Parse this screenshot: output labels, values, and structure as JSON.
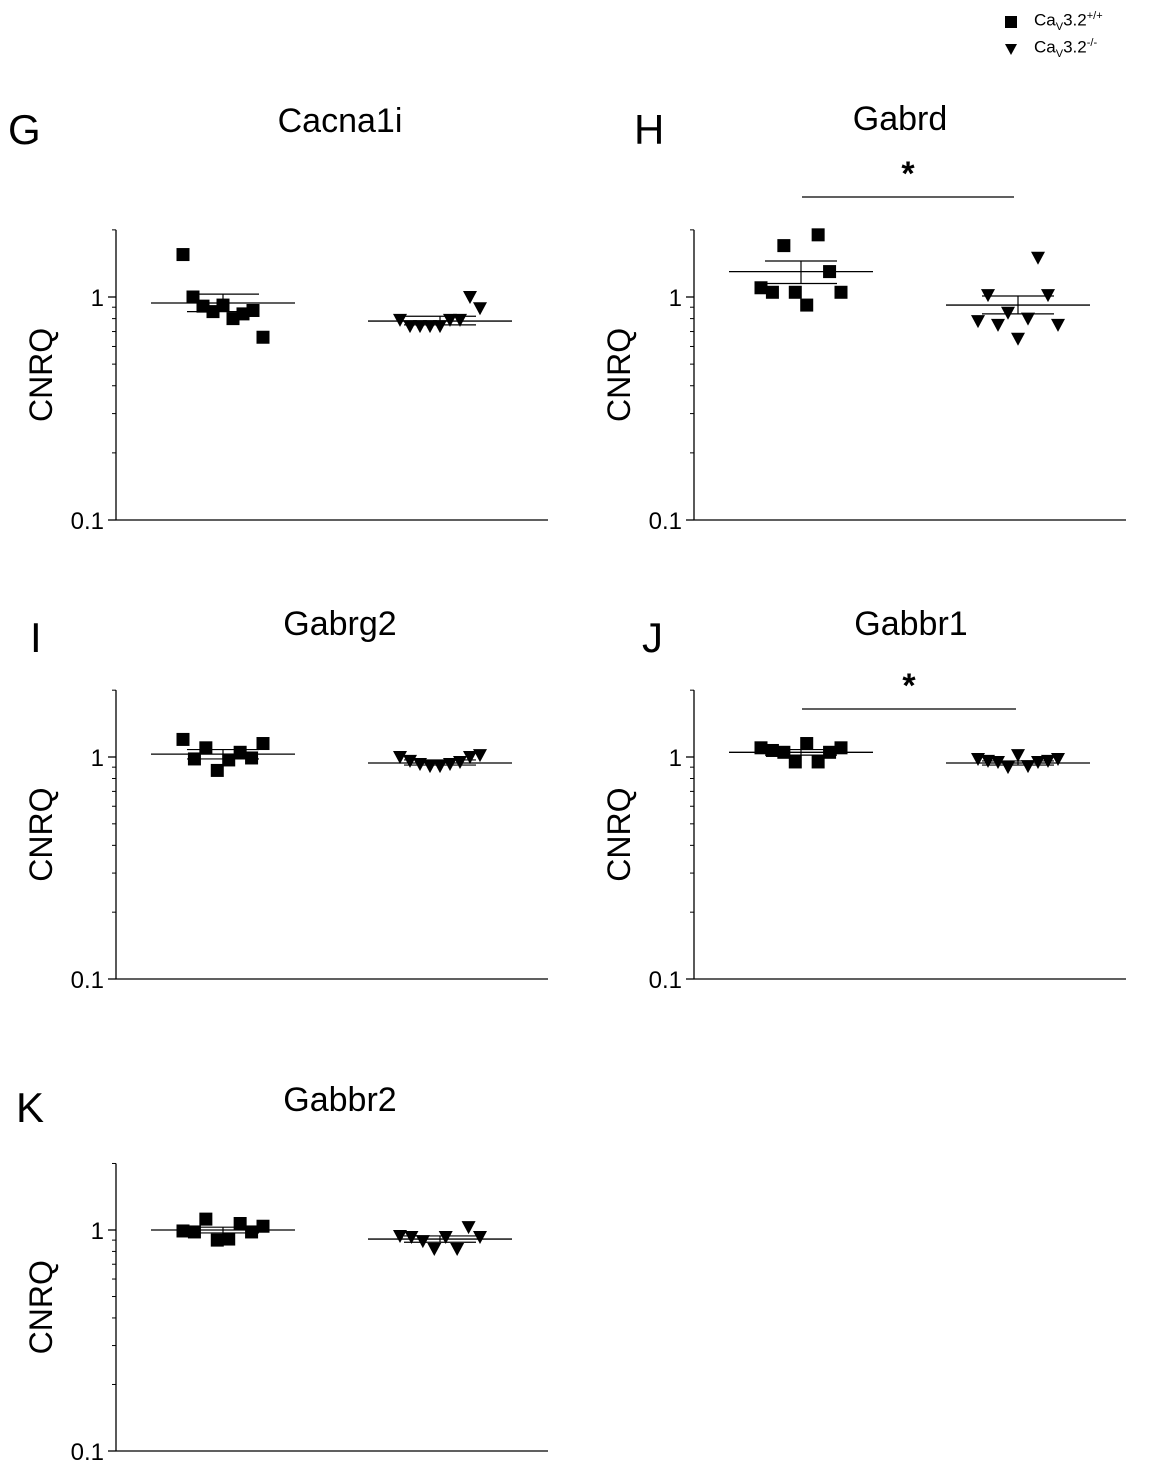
{
  "legend": {
    "entries": [
      {
        "marker": "square",
        "prefix": "Ca",
        "sub": "V",
        "body": "3.2",
        "sup": "+/+"
      },
      {
        "marker": "triangle-down",
        "prefix": "Ca",
        "sub": "V",
        "body": "3.2",
        "sup": "-/-"
      }
    ]
  },
  "chart_data": [
    {
      "type": "scatter",
      "panel": "G",
      "title": "Cacna1i",
      "ylabel": "CNRQ",
      "yscale": "log",
      "ylim": [
        0.1,
        2
      ],
      "yticks": [
        {
          "value": 0.1,
          "label": "0.1"
        },
        {
          "value": 1,
          "label": "1"
        }
      ],
      "groups": [
        {
          "marker": "square",
          "values": [
            1.55,
            1.0,
            0.91,
            0.86,
            0.92,
            0.8,
            0.84,
            0.87,
            0.66
          ],
          "mean": 0.94,
          "sem_low": 0.86,
          "sem_high": 1.03
        },
        {
          "marker": "triangle-down",
          "values": [
            0.79,
            0.74,
            0.74,
            0.74,
            0.74,
            0.79,
            0.79,
            1.0,
            0.89
          ],
          "mean": 0.78,
          "sem_low": 0.75,
          "sem_high": 0.82
        }
      ],
      "significance": null
    },
    {
      "type": "scatter",
      "panel": "H",
      "title": "Gabrd",
      "ylabel": "CNRQ",
      "yscale": "log",
      "ylim": [
        0.1,
        2
      ],
      "yticks": [
        {
          "value": 0.1,
          "label": "0.1"
        },
        {
          "value": 1,
          "label": "1"
        }
      ],
      "groups": [
        {
          "marker": "square",
          "values": [
            1.1,
            1.05,
            1.7,
            1.05,
            0.92,
            1.9,
            1.3,
            1.05
          ],
          "mean": 1.3,
          "sem_low": 1.15,
          "sem_high": 1.45
        },
        {
          "marker": "triangle-down",
          "values": [
            0.78,
            1.02,
            0.75,
            0.85,
            0.65,
            0.8,
            1.5,
            1.02,
            0.75
          ],
          "mean": 0.92,
          "sem_low": 0.84,
          "sem_high": 1.01
        }
      ],
      "significance": "*"
    },
    {
      "type": "scatter",
      "panel": "I",
      "title": "Gabrg2",
      "ylabel": "CNRQ",
      "yscale": "log",
      "ylim": [
        0.1,
        2
      ],
      "yticks": [
        {
          "value": 0.1,
          "label": "0.1"
        },
        {
          "value": 1,
          "label": "1"
        }
      ],
      "groups": [
        {
          "marker": "square",
          "values": [
            1.2,
            0.98,
            1.1,
            0.87,
            0.97,
            1.05,
            0.99,
            1.15
          ],
          "mean": 1.03,
          "sem_low": 0.98,
          "sem_high": 1.08
        },
        {
          "marker": "triangle-down",
          "values": [
            1.0,
            0.96,
            0.93,
            0.91,
            0.91,
            0.93,
            0.95,
            1.0,
            1.02
          ],
          "mean": 0.94,
          "sem_low": 0.92,
          "sem_high": 0.97
        }
      ],
      "significance": null
    },
    {
      "type": "scatter",
      "panel": "J",
      "title": "Gabbr1",
      "ylabel": "CNRQ",
      "yscale": "log",
      "ylim": [
        0.1,
        2
      ],
      "yticks": [
        {
          "value": 0.1,
          "label": "0.1"
        },
        {
          "value": 1,
          "label": "1"
        }
      ],
      "groups": [
        {
          "marker": "square",
          "values": [
            1.1,
            1.07,
            1.05,
            0.95,
            1.15,
            0.95,
            1.05,
            1.1
          ],
          "mean": 1.05,
          "sem_low": 1.02,
          "sem_high": 1.08
        },
        {
          "marker": "triangle-down",
          "values": [
            0.98,
            0.96,
            0.95,
            0.9,
            1.02,
            0.91,
            0.95,
            0.96,
            0.98
          ],
          "mean": 0.94,
          "sem_low": 0.92,
          "sem_high": 0.96
        }
      ],
      "significance": "*"
    },
    {
      "type": "scatter",
      "panel": "K",
      "title": "Gabbr2",
      "ylabel": "CNRQ",
      "yscale": "log",
      "ylim": [
        0.1,
        2
      ],
      "yticks": [
        {
          "value": 0.1,
          "label": "0.1"
        },
        {
          "value": 1,
          "label": "1"
        }
      ],
      "groups": [
        {
          "marker": "square",
          "values": [
            0.99,
            0.98,
            1.12,
            0.9,
            0.91,
            1.07,
            0.98,
            1.04
          ],
          "mean": 1.0,
          "sem_low": 0.97,
          "sem_high": 1.03
        },
        {
          "marker": "triangle-down",
          "values": [
            0.94,
            0.93,
            0.89,
            0.82,
            0.93,
            0.82,
            1.03,
            0.93
          ],
          "mean": 0.91,
          "sem_low": 0.88,
          "sem_high": 0.94
        }
      ],
      "significance": null
    }
  ]
}
